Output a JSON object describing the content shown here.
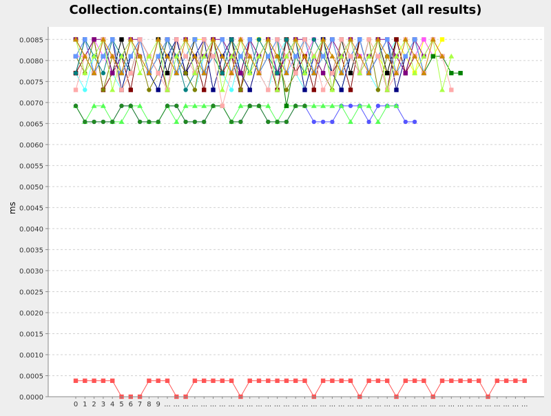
{
  "chart_data": {
    "type": "line",
    "title": "Collection.contains(E) ImmutableHugeHashSet (all results)",
    "ylabel": "ms",
    "xlabel": "",
    "ylim": [
      0,
      0.0088
    ],
    "yticks": [
      "0.0000",
      "0.0005",
      "0.0010",
      "0.0015",
      "0.0020",
      "0.0025",
      "0.0030",
      "0.0035",
      "0.0040",
      "0.0045",
      "0.0050",
      "0.0055",
      "0.0060",
      "0.0065",
      "0.0070",
      "0.0075",
      "0.0080",
      "0.0085"
    ],
    "xticks": [
      "0",
      "1",
      "2",
      "3",
      "4",
      "5",
      "6",
      "7",
      "8",
      "9",
      "...",
      "...",
      "...",
      "...",
      "...",
      "...",
      "...",
      "...",
      "...",
      "...",
      "...",
      "...",
      "...",
      "...",
      "...",
      "...",
      "...",
      "...",
      "...",
      "...",
      "...",
      "...",
      "...",
      "...",
      "...",
      "...",
      "...",
      "...",
      "...",
      "...",
      "...",
      "...",
      "...",
      "...",
      "...",
      "...",
      "...",
      "...",
      "...",
      "..."
    ],
    "grid": true,
    "series": [
      {
        "color": "#ff5555",
        "marker": "square",
        "values": [
          0.00038,
          0.00038,
          0.00038,
          0.00038,
          0.00038,
          0,
          0,
          0,
          0.00038,
          0.00038,
          0.00038,
          0,
          0,
          0.00038,
          0.00038,
          0.00038,
          0.00038,
          0.00038,
          0,
          0.00038,
          0.00038,
          0.00038,
          0.00038,
          0.00038,
          0.00038,
          0.00038,
          0,
          0.00038,
          0.00038,
          0.00038,
          0.00038,
          0,
          0.00038,
          0.00038,
          0.00038,
          0,
          0.00038,
          0.00038,
          0.00038,
          0,
          0.00038,
          0.00038,
          0.00038,
          0.00038,
          0.00038,
          0,
          0.00038,
          0.00038,
          0.00038,
          0.00038
        ]
      },
      {
        "color": "#5555ff",
        "marker": "circle",
        "values": [
          0.00692,
          0.00654,
          0.00654,
          0.00654,
          0.00654,
          0.00692,
          0.00692,
          0.00654,
          0.00654,
          0.00654,
          0.00692,
          0.00692,
          0.00654,
          0.00654,
          0.00654,
          0.00692,
          0.00692,
          0.00654,
          0.00654,
          0.00692,
          0.00692,
          0.00654,
          0.00654,
          0.00654,
          0.00692,
          0.00692,
          0.00654,
          0.00654,
          0.00654,
          0.00692,
          0.00692,
          0.00692,
          0.00654,
          0.00692,
          0.00692,
          0.00692,
          0.00654,
          0.00654
        ]
      },
      {
        "color": "#55ff55",
        "marker": "triangle",
        "values": [
          0.00692,
          0.00654,
          0.00692,
          0.00692,
          0.00654,
          0.00654,
          0.00692,
          0.00692,
          0.00654,
          0.00654,
          0.00692,
          0.00654,
          0.00692,
          0.00692,
          0.00692,
          0.00692,
          0.00692,
          0.00654,
          0.00692,
          0.00692,
          0.00692,
          0.00692,
          0.00654,
          0.00692,
          0.00692,
          0.00692,
          0.00692,
          0.00692,
          0.00692,
          0.00692,
          0.00654,
          0.00692,
          0.00692,
          0.00654,
          0.00692,
          0.00692
        ]
      },
      {
        "color": "#228822",
        "marker": "circle",
        "values": [
          0.00692,
          0.00654,
          0.00654,
          0.00654,
          0.00654,
          0.00692,
          0.00692,
          0.00654,
          0.00654,
          0.00654,
          0.00692,
          0.00692,
          0.00654,
          0.00654,
          0.00654,
          0.00692,
          0.00692,
          0.00654,
          0.00654,
          0.00692,
          0.00692,
          0.00654,
          0.00654,
          0.00654,
          0.00692,
          0.00692
        ]
      },
      {
        "color": "#ffff00",
        "marker": "square",
        "values": [
          0.0085,
          0.0081,
          0.0077,
          0.0085,
          0.0081,
          0.0073,
          0.0077,
          0.0085,
          0.0081,
          0.0077,
          0.0085,
          0.0081,
          0.0077,
          0.0085,
          0.0085,
          0.0081,
          0.0077,
          0.0085,
          0.0081,
          0.0077,
          0.0085,
          0.0081,
          0.0077,
          0.0085,
          0.0081,
          0.0077,
          0.0085,
          0.0081,
          0.0077,
          0.0085,
          0.0081,
          0.0077,
          0.0085,
          0.0081,
          0.0077,
          0.0085,
          0.0081,
          0.0077,
          0.0085,
          0.0081,
          0.0085
        ]
      },
      {
        "color": "#ff55ff",
        "marker": "square",
        "values": [
          0.0081,
          0.0081,
          0.0085,
          0.0081,
          0.0077,
          0.0081,
          0.0085,
          0.0081,
          0.0077,
          0.0081,
          0.0085,
          0.0081,
          0.0077,
          0.0081,
          0.0085,
          0.0081,
          0.0077,
          0.0081,
          0.0085,
          0.0081,
          0.0077,
          0.0081,
          0.0085,
          0.0081,
          0.0077,
          0.0081,
          0.0085,
          0.0081,
          0.0077,
          0.0081,
          0.0085,
          0.0081,
          0.0077,
          0.0081,
          0.0085,
          0.0081,
          0.0077,
          0.0081,
          0.0085,
          0.0081
        ]
      },
      {
        "color": "#55ffff",
        "marker": "circle",
        "values": [
          0.0077,
          0.0073,
          0.0081,
          0.0085,
          0.0077,
          0.0073,
          0.0081,
          0.0085,
          0.0077,
          0.0073,
          0.0081,
          0.0085,
          0.0077,
          0.0073,
          0.0081,
          0.0085,
          0.0077,
          0.0073,
          0.0081,
          0.0085,
          0.0077,
          0.0073,
          0.0081,
          0.0085,
          0.0077,
          0.0073,
          0.0081,
          0.0085,
          0.0077,
          0.0073,
          0.0081,
          0.0085,
          0.0077,
          0.0073,
          0.0081,
          0.0085
        ]
      },
      {
        "color": "#000000",
        "marker": "square",
        "values": [
          0.0077,
          0.0085,
          0.0077,
          0.0085,
          0.0077,
          0.0085,
          0.0077,
          0.0085,
          0.0077,
          0.0085,
          0.0077,
          0.0085,
          0.0077,
          0.0085,
          0.0077,
          0.0085,
          0.0077,
          0.0085,
          0.0077,
          0.0085,
          0.0077,
          0.0085,
          0.0077,
          0.0085,
          0.0077,
          0.0085,
          0.0077,
          0.0085,
          0.0077,
          0.0085,
          0.0077,
          0.0085,
          0.0077,
          0.0085,
          0.0077,
          0.0085,
          0.0077,
          0.0085,
          0.0077
        ]
      },
      {
        "color": "#800000",
        "marker": "square",
        "values": [
          0.0077,
          0.0081,
          0.0085,
          0.0073,
          0.0077,
          0.0081,
          0.0073,
          0.0085,
          0.0077,
          0.0081,
          0.0073,
          0.0085,
          0.0077,
          0.0081,
          0.0073,
          0.0085,
          0.0077,
          0.0081,
          0.0073,
          0.0085,
          0.0077,
          0.0081,
          0.0073,
          0.0085,
          0.0077,
          0.0081,
          0.0073,
          0.0085,
          0.0077,
          0.0081,
          0.0073,
          0.0085,
          0.0077,
          0.0081,
          0.0073,
          0.0085,
          0.0077,
          0.0081
        ]
      },
      {
        "color": "#008000",
        "marker": "square",
        "values": [
          0.0085,
          0.0081,
          0.0077,
          0.0081,
          0.0085,
          0.0077,
          0.0081,
          0.0085,
          0.0077,
          0.0081,
          0.0085,
          0.0077,
          0.0081,
          0.0085,
          0.0077,
          0.0081,
          0.0085,
          0.0077,
          0.0081,
          0.0085,
          0.0077,
          0.0081,
          0.0085,
          0.00692,
          0.0081,
          0.0085,
          0.0077,
          0.0081,
          0.0085,
          0.0077,
          0.0081,
          0.0085,
          0.0077,
          0.0081,
          0.0085,
          0.0077,
          0.0081,
          0.0085,
          0.0077,
          0.0081,
          0.0081,
          0.0077,
          0.0077
        ]
      },
      {
        "color": "#000080",
        "marker": "square",
        "values": [
          0.0081,
          0.0085,
          0.0077,
          0.0081,
          0.0085,
          0.0073,
          0.0081,
          0.0085,
          0.0077,
          0.0073,
          0.0081,
          0.0085,
          0.0077,
          0.0081,
          0.0085,
          0.0073,
          0.0081,
          0.0085,
          0.0077,
          0.0073,
          0.0081,
          0.0085,
          0.0077,
          0.0081,
          0.0085,
          0.0073,
          0.0081,
          0.0085,
          0.0077,
          0.0073,
          0.0081,
          0.0085,
          0.0077,
          0.0081,
          0.0085,
          0.0073,
          0.0081
        ]
      },
      {
        "color": "#808000",
        "marker": "circle",
        "values": [
          0.0081,
          0.0077,
          0.0085,
          0.0073,
          0.0081,
          0.0077,
          0.0085,
          0.0081,
          0.0073,
          0.0077,
          0.0085,
          0.0081,
          0.0077,
          0.0073,
          0.0085,
          0.0081,
          0.0077,
          0.0085,
          0.0073,
          0.0081,
          0.0077,
          0.0085,
          0.0081,
          0.0073,
          0.0077,
          0.0085,
          0.0081,
          0.0077,
          0.0073,
          0.0085,
          0.0081,
          0.0077,
          0.0085,
          0.0073,
          0.0081
        ]
      },
      {
        "color": "#800080",
        "marker": "square",
        "values": [
          0.0085,
          0.0081,
          0.0085,
          0.0085,
          0.0077,
          0.0081,
          0.0085,
          0.0085,
          0.0081,
          0.0077,
          0.0085,
          0.0081,
          0.0085,
          0.0077,
          0.0081,
          0.0085,
          0.0085,
          0.0081,
          0.0077,
          0.0085,
          0.0081,
          0.0085,
          0.0077,
          0.0081,
          0.0085,
          0.0085,
          0.0081,
          0.0077,
          0.0085,
          0.0081,
          0.0085,
          0.0077,
          0.0081,
          0.0085,
          0.0085,
          0.0081,
          0.0077,
          0.0085,
          0.0081,
          0.0085,
          0.0081
        ]
      },
      {
        "color": "#008080",
        "marker": "circle",
        "values": [
          0.0077,
          0.0085,
          0.0081,
          0.0077,
          0.0085,
          0.0081,
          0.0077,
          0.0085,
          0.0081,
          0.0077,
          0.0085,
          0.0081,
          0.0073,
          0.0077,
          0.0085,
          0.0081,
          0.0077,
          0.0085,
          0.0081,
          0.0077,
          0.0085,
          0.0081,
          0.0077,
          0.0085,
          0.0081,
          0.0077,
          0.0085,
          0.0081,
          0.0077,
          0.0085,
          0.0081,
          0.0077,
          0.0085
        ]
      },
      {
        "color": "#6699ff",
        "marker": "square",
        "values": [
          0.0081,
          0.0085,
          0.0077,
          0.0081,
          0.0085,
          0.0077,
          0.0081,
          0.0085,
          0.0077,
          0.0081,
          0.0085,
          0.0077,
          0.0081,
          0.0085,
          0.0077,
          0.0081,
          0.0085,
          0.0077,
          0.0081,
          0.0085,
          0.0077,
          0.0081,
          0.0085,
          0.0077,
          0.0081,
          0.0085,
          0.0077,
          0.0081,
          0.0085,
          0.0077,
          0.0081,
          0.0085,
          0.0077,
          0.0081,
          0.0085,
          0.0077,
          0.0081,
          0.0085,
          0.0077
        ]
      },
      {
        "color": "#ffaaaa",
        "marker": "square",
        "values": [
          0.0073,
          0.0081,
          0.0077,
          0.0085,
          0.0081,
          0.0073,
          0.0077,
          0.0085,
          0.0081,
          0.0077,
          0.0073,
          0.0085,
          0.0081,
          0.0077,
          0.0085,
          0.0081,
          0.00692,
          0.0077,
          0.0085,
          0.0081,
          0.0077,
          0.0073,
          0.0085,
          0.0081,
          0.0077,
          0.0085,
          0.0081,
          0.0073,
          0.0077,
          0.0085,
          0.0081,
          0.0077,
          0.0085,
          0.0081,
          0.0073,
          0.0077,
          0.0085,
          0.0081,
          0.0077,
          0.0085,
          0.0081,
          0.0073
        ]
      },
      {
        "color": "#aaff44",
        "marker": "triangle",
        "values": [
          0.0085,
          0.0077,
          0.0081,
          0.0085,
          0.0073,
          0.0081,
          0.0085,
          0.0077,
          0.0081,
          0.0085,
          0.0073,
          0.0081,
          0.0085,
          0.0077,
          0.0081,
          0.0085,
          0.0073,
          0.0081,
          0.0085,
          0.0077,
          0.0081,
          0.0085,
          0.0073,
          0.0081,
          0.0085,
          0.0077,
          0.0081,
          0.0085,
          0.0073,
          0.0081,
          0.0085,
          0.0077,
          0.0081,
          0.0085,
          0.0073,
          0.0081,
          0.0085,
          0.0077,
          0.0081,
          0.0085,
          0.0073,
          0.0081
        ]
      },
      {
        "color": "#cc8800",
        "marker": "triangle",
        "values": [
          0.0085,
          0.0081,
          0.0077,
          0.0085,
          0.0081,
          0.0077,
          0.0085,
          0.0081,
          0.0077,
          0.0085,
          0.0081,
          0.0077,
          0.0085,
          0.0081,
          0.0077,
          0.0085,
          0.0081,
          0.0077,
          0.0085,
          0.0081,
          0.0077,
          0.0085,
          0.0081,
          0.0077,
          0.0085,
          0.0081,
          0.0077,
          0.0085,
          0.0081,
          0.0077,
          0.0085,
          0.0081,
          0.0077,
          0.0085,
          0.0081,
          0.0077,
          0.0085,
          0.0081,
          0.0077,
          0.0085,
          0.0081
        ]
      }
    ]
  }
}
